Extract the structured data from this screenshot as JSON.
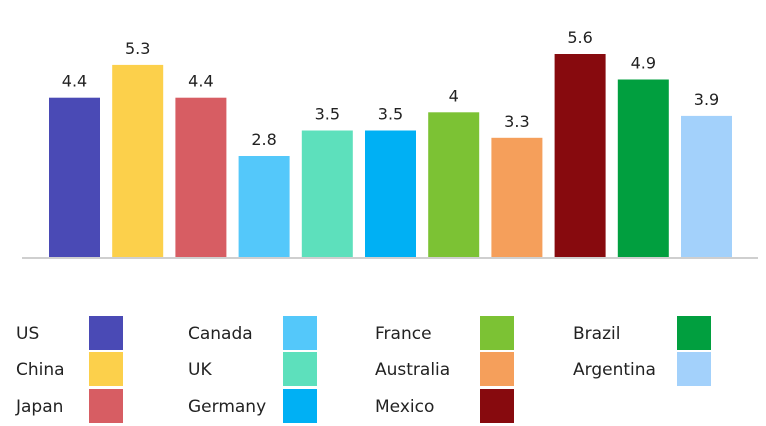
{
  "chart_data": {
    "type": "bar",
    "title": "",
    "xlabel": "",
    "ylabel": "",
    "ylim": [
      0,
      5.6
    ],
    "grid": false,
    "legend_position": "bottom",
    "categories": [
      "US",
      "China",
      "Japan",
      "Canada",
      "UK",
      "Germany",
      "France",
      "Australia",
      "Mexico",
      "Brazil",
      "Argentina"
    ],
    "values": [
      4.4,
      5.3,
      4.4,
      2.8,
      3.5,
      3.5,
      4,
      3.3,
      5.6,
      4.9,
      3.9
    ],
    "value_labels": [
      "4.4",
      "5.3",
      "4.4",
      "2.8",
      "3.5",
      "3.5",
      "4",
      "3.3",
      "5.6",
      "4.9",
      "3.9"
    ],
    "colors": [
      "#4a4ab5",
      "#fcd04b",
      "#d75d63",
      "#54c8fa",
      "#5de0bc",
      "#00b0f4",
      "#7cc234",
      "#f59f5b",
      "#870a0e",
      "#019f3f",
      "#a3d1fb"
    ]
  }
}
